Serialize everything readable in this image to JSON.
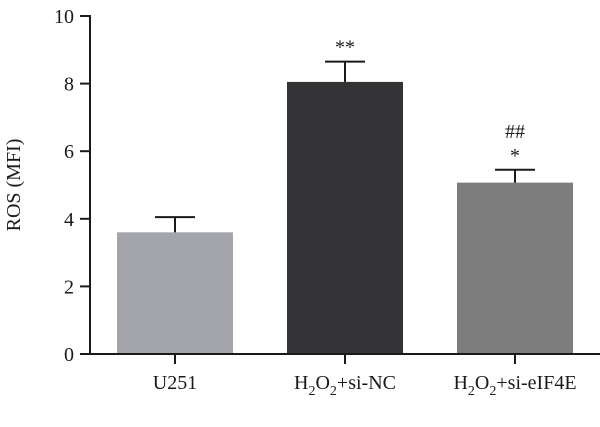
{
  "chart_data": {
    "type": "bar",
    "ylabel": "ROS (MFI)",
    "ylim": [
      0,
      10
    ],
    "yticks": [
      0,
      2,
      4,
      6,
      8,
      10
    ],
    "grid": false,
    "bars": [
      {
        "label_parts": [
          {
            "text": "U251",
            "sub": false
          }
        ],
        "value": 3.6,
        "error": 0.45,
        "color": "#a4a5aa",
        "annotations": []
      },
      {
        "label_parts": [
          {
            "text": "H",
            "sub": false
          },
          {
            "text": "2",
            "sub": true
          },
          {
            "text": "O",
            "sub": false
          },
          {
            "text": "2",
            "sub": true
          },
          {
            "text": "+si-NC",
            "sub": false
          }
        ],
        "value": 8.05,
        "error": 0.6,
        "color": "#333335",
        "annotations": [
          "**"
        ]
      },
      {
        "label_parts": [
          {
            "text": "H",
            "sub": false
          },
          {
            "text": "2",
            "sub": true
          },
          {
            "text": "O",
            "sub": false
          },
          {
            "text": "2",
            "sub": true
          },
          {
            "text": "+si-eIF4E",
            "sub": false
          }
        ],
        "value": 5.07,
        "error": 0.38,
        "color": "#7c7d7c",
        "annotations": [
          "*",
          "##"
        ]
      }
    ]
  }
}
